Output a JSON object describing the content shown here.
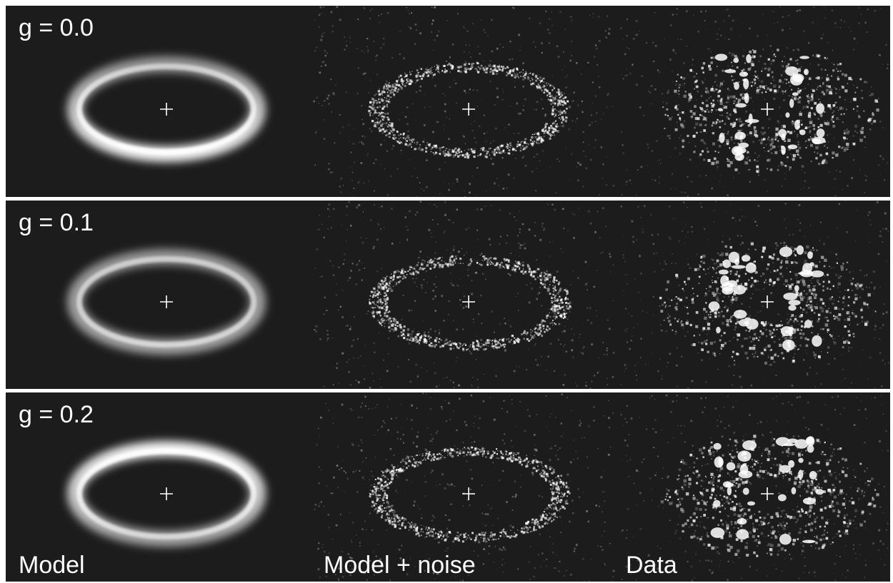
{
  "rows": [
    {
      "label": "g = 0.0",
      "g": 0.0
    },
    {
      "label": "g = 0.1",
      "g": 0.1
    },
    {
      "label": "g = 0.2",
      "g": 0.2
    }
  ],
  "columns": [
    "Model",
    "Model + noise",
    "Data"
  ],
  "colors": {
    "background": "#1c1c1c",
    "ring": "#ffffff",
    "separator": "#ffffff"
  }
}
